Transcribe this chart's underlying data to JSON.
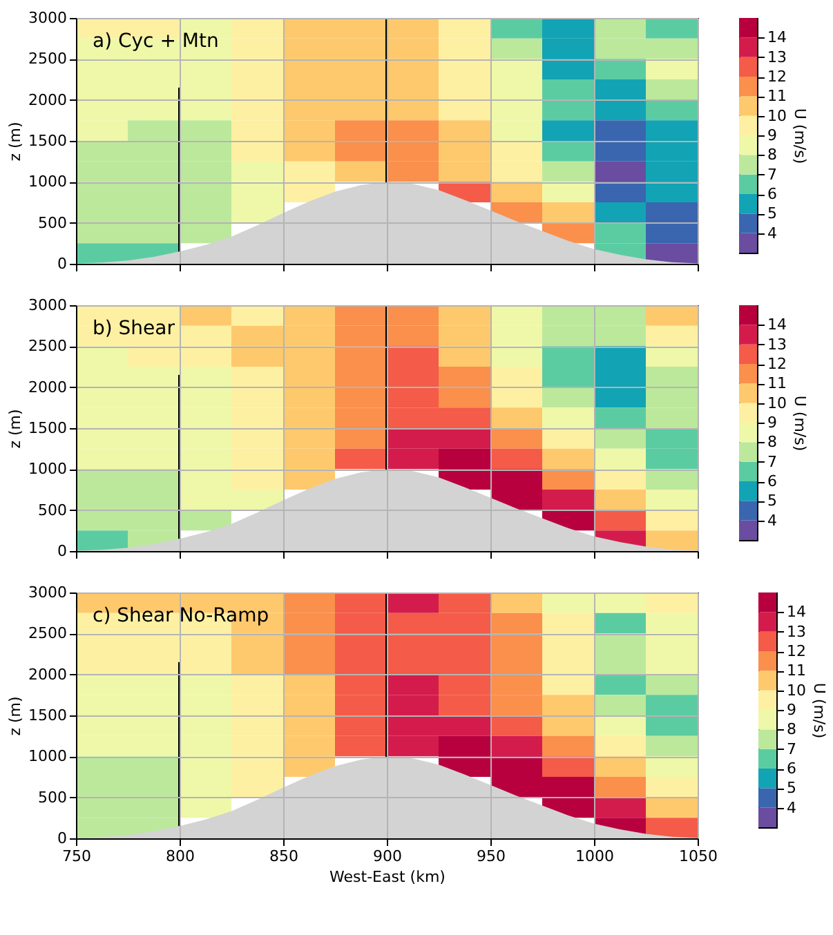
{
  "chart_data": [
    {
      "type": "heatmap",
      "title": "a)       Cyc + Mtn",
      "ylabel": "z (m)",
      "clabel": "U (m/s)",
      "grid": true,
      "legend": false,
      "tick_labels": "y",
      "x": [
        762.5,
        787.5,
        812.5,
        837.5,
        862.5,
        887.5,
        912.5,
        937.5,
        962.5,
        987.5,
        1012.5,
        1037.5
      ],
      "y": [
        2875,
        2625,
        2375,
        2125,
        1875,
        1625,
        1375,
        1125,
        875,
        625,
        375,
        125
      ],
      "xlim": [
        750,
        1050
      ],
      "xticks": [
        750,
        800,
        850,
        900,
        950,
        1000,
        1050
      ],
      "ylim": [
        0,
        3000
      ],
      "yticks": [
        0,
        500,
        1000,
        1500,
        2000,
        2500,
        3000
      ],
      "clim": [
        3,
        15
      ],
      "cticks": [
        4,
        5,
        6,
        7,
        8,
        9,
        10,
        11,
        12,
        13,
        14
      ],
      "colors": [
        "#6a4ca0",
        "#3a66b0",
        "#12a3b5",
        "#5bcca2",
        "#bce89c",
        "#eef8a8",
        "#fef0a2",
        "#fec96c",
        "#fb8f4c",
        "#f45b48",
        "#d41c4c",
        "#b8003e"
      ],
      "cells": [
        [
          9.5,
          9.5,
          8.5,
          9.5,
          10.5,
          10.5,
          10.5,
          9.5,
          6.5,
          5.5,
          7.5,
          6.5
        ],
        [
          8.5,
          8.5,
          8.5,
          9.5,
          10.5,
          10.5,
          10.5,
          9.5,
          7.5,
          5.5,
          7.5,
          7.5
        ],
        [
          8.5,
          8.5,
          8.5,
          9.5,
          10.5,
          10.5,
          10.5,
          9.5,
          8.5,
          5.5,
          6.5,
          8.5
        ],
        [
          8.5,
          8.5,
          8.5,
          9.5,
          10.5,
          10.5,
          10.5,
          9.5,
          8.5,
          6.5,
          5.5,
          7.5
        ],
        [
          8.5,
          8.5,
          8.5,
          9.5,
          10.5,
          10.5,
          10.5,
          9.5,
          8.5,
          6.5,
          5.5,
          6.5
        ],
        [
          8.5,
          7.5,
          7.5,
          9.5,
          10.5,
          11.5,
          11.5,
          10.5,
          8.5,
          5.5,
          4.5,
          5.5
        ],
        [
          7.5,
          7.5,
          7.5,
          9.5,
          10.5,
          11.5,
          11.5,
          10.5,
          9.5,
          6.5,
          4.5,
          5.5
        ],
        [
          7.5,
          7.5,
          7.5,
          8.5,
          9.5,
          10.5,
          11.5,
          10.5,
          9.5,
          7.5,
          3.5,
          5.5
        ],
        [
          7.5,
          7.5,
          7.5,
          8.5,
          9.5,
          null,
          null,
          12.5,
          10.5,
          8.5,
          4.5,
          5.5
        ],
        [
          7.5,
          7.5,
          7.5,
          8.5,
          null,
          null,
          null,
          null,
          11.5,
          10.5,
          5.5,
          4.5
        ],
        [
          7.5,
          7.5,
          7.5,
          null,
          null,
          null,
          null,
          null,
          null,
          11.5,
          6.5,
          4.5
        ],
        [
          6.5,
          6.5,
          null,
          null,
          null,
          null,
          null,
          null,
          null,
          null,
          6.5,
          3.5
        ]
      ],
      "series": [
        {
          "type": "area",
          "color": "#d3d3d3",
          "x": [
            750,
            762.5,
            775,
            787.5,
            800,
            812.5,
            825,
            837.5,
            850,
            862.5,
            875,
            887.5,
            900,
            912.5,
            925,
            937.5,
            950,
            962.5,
            975,
            987.5,
            1000,
            1012.5,
            1025,
            1037.5,
            1050
          ],
          "values": [
            5,
            15,
            40,
            85,
            150,
            230,
            330,
            470,
            620,
            760,
            880,
            960,
            1000,
            975,
            900,
            780,
            650,
            520,
            400,
            280,
            180,
            110,
            55,
            20,
            5
          ]
        },
        {
          "type": "line",
          "color": "#000000",
          "x": [
            800,
            800
          ],
          "values": [
            150,
            2150
          ]
        },
        {
          "type": "line",
          "color": "#000000",
          "x": [
            900,
            900
          ],
          "values": [
            980,
            3000
          ]
        }
      ]
    },
    {
      "type": "heatmap",
      "title": "b) Shear",
      "ylabel": "z (m)",
      "clabel": "U (m/s)",
      "grid": true,
      "legend": false,
      "tick_labels": "y",
      "x": [
        762.5,
        787.5,
        812.5,
        837.5,
        862.5,
        887.5,
        912.5,
        937.5,
        962.5,
        987.5,
        1012.5,
        1037.5
      ],
      "y": [
        2875,
        2625,
        2375,
        2125,
        1875,
        1625,
        1375,
        1125,
        875,
        625,
        375,
        125
      ],
      "xlim": [
        750,
        1050
      ],
      "xticks": [
        750,
        800,
        850,
        900,
        950,
        1000,
        1050
      ],
      "ylim": [
        0,
        3000
      ],
      "yticks": [
        0,
        500,
        1000,
        1500,
        2000,
        2500,
        3000
      ],
      "clim": [
        3,
        15
      ],
      "cticks": [
        4,
        5,
        6,
        7,
        8,
        9,
        10,
        11,
        12,
        13,
        14
      ],
      "colors": [
        "#6a4ca0",
        "#3a66b0",
        "#12a3b5",
        "#5bcca2",
        "#bce89c",
        "#eef8a8",
        "#fef0a2",
        "#fec96c",
        "#fb8f4c",
        "#f45b48",
        "#d41c4c",
        "#b8003e"
      ],
      "cells": [
        [
          9.5,
          9.5,
          10.5,
          9.5,
          10.5,
          11.5,
          11.5,
          10.5,
          8.5,
          7.5,
          7.5,
          10.5
        ],
        [
          9.5,
          9.5,
          9.5,
          10.5,
          10.5,
          11.5,
          11.5,
          10.5,
          8.5,
          7.5,
          7.5,
          9.5
        ],
        [
          8.5,
          9.5,
          9.5,
          10.5,
          10.5,
          11.5,
          12.5,
          10.5,
          8.5,
          6.5,
          5.5,
          8.5
        ],
        [
          8.5,
          8.5,
          8.5,
          9.5,
          10.5,
          11.5,
          12.5,
          11.5,
          9.5,
          6.5,
          5.5,
          7.5
        ],
        [
          8.5,
          8.5,
          8.5,
          9.5,
          10.5,
          11.5,
          12.5,
          11.5,
          9.5,
          7.5,
          5.5,
          7.5
        ],
        [
          8.5,
          8.5,
          8.5,
          9.5,
          10.5,
          11.5,
          12.5,
          12.5,
          10.5,
          8.5,
          6.5,
          7.5
        ],
        [
          8.5,
          8.5,
          8.5,
          9.5,
          10.5,
          11.5,
          13.5,
          13.5,
          11.5,
          9.5,
          7.5,
          6.5
        ],
        [
          8.5,
          8.5,
          8.5,
          9.5,
          10.5,
          12.5,
          13.5,
          14.5,
          12.5,
          10.5,
          8.5,
          6.5
        ],
        [
          7.5,
          7.5,
          8.5,
          9.5,
          10.5,
          null,
          null,
          14.5,
          14.5,
          11.5,
          9.5,
          7.5
        ],
        [
          7.5,
          7.5,
          8.5,
          8.5,
          null,
          null,
          null,
          null,
          14.5,
          13.5,
          10.5,
          8.5
        ],
        [
          7.5,
          7.5,
          7.5,
          null,
          null,
          null,
          null,
          null,
          null,
          14.5,
          12.5,
          9.5
        ],
        [
          6.5,
          7.5,
          null,
          null,
          null,
          null,
          null,
          null,
          null,
          null,
          13.5,
          10.5
        ]
      ],
      "series": [
        {
          "type": "area",
          "color": "#d3d3d3",
          "x": [
            750,
            762.5,
            775,
            787.5,
            800,
            812.5,
            825,
            837.5,
            850,
            862.5,
            875,
            887.5,
            900,
            912.5,
            925,
            937.5,
            950,
            962.5,
            975,
            987.5,
            1000,
            1012.5,
            1025,
            1037.5,
            1050
          ],
          "values": [
            5,
            15,
            40,
            85,
            150,
            230,
            330,
            470,
            620,
            760,
            880,
            960,
            1000,
            975,
            900,
            780,
            650,
            520,
            400,
            280,
            180,
            110,
            55,
            20,
            5
          ]
        },
        {
          "type": "line",
          "color": "#000000",
          "x": [
            800,
            800
          ],
          "values": [
            150,
            2150
          ]
        },
        {
          "type": "line",
          "color": "#000000",
          "x": [
            900,
            900
          ],
          "values": [
            980,
            3000
          ]
        }
      ]
    },
    {
      "type": "heatmap",
      "title": "c) Shear No-Ramp",
      "xlabel": "West-East (km)",
      "ylabel": "z (m)",
      "clabel": "U (m/s)",
      "grid": true,
      "legend": false,
      "x": [
        762.5,
        787.5,
        812.5,
        837.5,
        862.5,
        887.5,
        912.5,
        937.5,
        962.5,
        987.5,
        1012.5,
        1037.5
      ],
      "y": [
        2875,
        2625,
        2375,
        2125,
        1875,
        1625,
        1375,
        1125,
        875,
        625,
        375,
        125
      ],
      "xlim": [
        750,
        1050
      ],
      "xticks": [
        750,
        800,
        850,
        900,
        950,
        1000,
        1050
      ],
      "ylim": [
        0,
        3000
      ],
      "yticks": [
        0,
        500,
        1000,
        1500,
        2000,
        2500,
        3000
      ],
      "clim": [
        3,
        15
      ],
      "cticks": [
        4,
        5,
        6,
        7,
        8,
        9,
        10,
        11,
        12,
        13,
        14
      ],
      "colors": [
        "#6a4ca0",
        "#3a66b0",
        "#12a3b5",
        "#5bcca2",
        "#bce89c",
        "#eef8a8",
        "#fef0a2",
        "#fec96c",
        "#fb8f4c",
        "#f45b48",
        "#d41c4c",
        "#b8003e"
      ],
      "cells": [
        [
          10.5,
          10.5,
          10.5,
          10.5,
          11.5,
          12.5,
          13.5,
          12.5,
          10.5,
          8.5,
          8.5,
          9.5
        ],
        [
          9.5,
          9.5,
          9.5,
          10.5,
          11.5,
          12.5,
          12.5,
          12.5,
          11.5,
          9.5,
          6.5,
          8.5
        ],
        [
          9.5,
          9.5,
          9.5,
          10.5,
          11.5,
          12.5,
          12.5,
          12.5,
          11.5,
          9.5,
          7.5,
          8.5
        ],
        [
          9.5,
          9.5,
          9.5,
          10.5,
          11.5,
          12.5,
          12.5,
          12.5,
          11.5,
          9.5,
          7.5,
          8.5
        ],
        [
          8.5,
          8.5,
          8.5,
          9.5,
          10.5,
          12.5,
          13.5,
          12.5,
          11.5,
          9.5,
          6.5,
          7.5
        ],
        [
          8.5,
          8.5,
          8.5,
          9.5,
          10.5,
          12.5,
          13.5,
          12.5,
          11.5,
          10.5,
          7.5,
          6.5
        ],
        [
          8.5,
          8.5,
          8.5,
          9.5,
          10.5,
          12.5,
          13.5,
          13.5,
          12.5,
          10.5,
          8.5,
          6.5
        ],
        [
          8.5,
          8.5,
          8.5,
          9.5,
          10.5,
          12.5,
          13.5,
          14.5,
          13.5,
          11.5,
          9.5,
          7.5
        ],
        [
          7.5,
          7.5,
          8.5,
          9.5,
          10.5,
          null,
          null,
          14.5,
          14.5,
          12.5,
          10.5,
          8.5
        ],
        [
          7.5,
          7.5,
          8.5,
          9.5,
          null,
          null,
          null,
          null,
          14.5,
          14.5,
          11.5,
          9.5
        ],
        [
          7.5,
          7.5,
          8.5,
          null,
          null,
          null,
          null,
          null,
          null,
          14.5,
          13.5,
          10.5
        ],
        [
          7.5,
          7.5,
          null,
          null,
          null,
          null,
          null,
          null,
          null,
          null,
          14.5,
          12.5
        ]
      ],
      "series": [
        {
          "type": "area",
          "color": "#d3d3d3",
          "x": [
            750,
            762.5,
            775,
            787.5,
            800,
            812.5,
            825,
            837.5,
            850,
            862.5,
            875,
            887.5,
            900,
            912.5,
            925,
            937.5,
            950,
            962.5,
            975,
            987.5,
            1000,
            1012.5,
            1025,
            1037.5,
            1050
          ],
          "values": [
            5,
            15,
            40,
            85,
            150,
            230,
            330,
            470,
            620,
            760,
            880,
            960,
            1000,
            975,
            900,
            780,
            650,
            520,
            400,
            280,
            180,
            110,
            55,
            20,
            5
          ]
        },
        {
          "type": "line",
          "color": "#000000",
          "x": [
            800,
            800
          ],
          "values": [
            150,
            2150
          ]
        },
        {
          "type": "line",
          "color": "#000000",
          "x": [
            900,
            900
          ],
          "values": [
            980,
            3000
          ]
        }
      ]
    }
  ]
}
